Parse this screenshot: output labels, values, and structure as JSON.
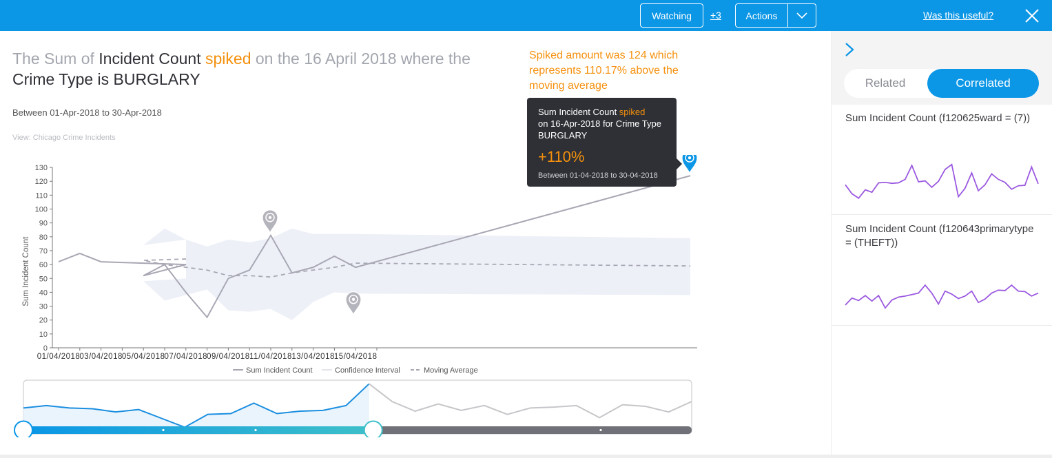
{
  "topbar": {
    "watching_label": "Watching",
    "plus_count": "+3",
    "actions_label": "Actions",
    "useful_label": "Was this useful?"
  },
  "headline": {
    "part1": "The Sum of ",
    "measure": "Incident Count",
    "space1": " ",
    "spiked": "spiked",
    "part2": " on the 16 April 2018 where the",
    "part3": "Crime Type is BURGLARY"
  },
  "between": "Between 01-Apr-2018 to 30-Apr-2018",
  "view_label": "View: Chicago Crime Incidents",
  "spike_note": "Spiked amount was 124 which represents 110.17% above the moving average",
  "tooltip": {
    "line1_a": "Sum Incident Count ",
    "line1_spiked": "spiked",
    "line2": "on 16-Apr-2018 for Crime Type BURGLARY",
    "pct": "+110%",
    "range": "Between 01-04-2018 to 30-04-2018"
  },
  "chart_data": {
    "type": "line",
    "ylabel": "Sum Incident Count",
    "ylim": [
      0,
      130
    ],
    "yticks": [
      0,
      10,
      20,
      30,
      40,
      50,
      60,
      70,
      80,
      90,
      100,
      110,
      120,
      130
    ],
    "x_tick_labels": [
      "01/04/2018",
      "03/04/2018",
      "05/04/2018",
      "07/04/2018",
      "09/04/2018",
      "11/04/2018",
      "13/04/2018",
      "15/04/2018"
    ],
    "x": [
      "01/04/2018",
      "02/04/2018",
      "03/04/2018",
      "04/04/2018",
      "05/04/2018",
      "06/04/2018",
      "07/04/2018",
      "08/04/2018",
      "09/04/2018",
      "10/04/2018",
      "11/04/2018",
      "12/04/2018",
      "13/04/2018",
      "14/04/2018",
      "15/04/2018",
      "16/04/2018"
    ],
    "series": [
      {
        "name": "Sum Incident Count",
        "color": "#a8a7b4",
        "values": [
          62,
          68,
          62,
          60,
          52,
          60,
          40,
          22,
          50,
          56,
          81,
          54,
          58,
          66,
          58,
          124
        ]
      },
      {
        "name": "Moving Average",
        "color": "#a8a7b4",
        "dashed": true,
        "values": [
          null,
          null,
          null,
          64,
          63,
          60,
          58,
          56,
          52,
          52,
          51,
          54,
          56,
          58,
          61,
          59
        ]
      },
      {
        "name": "Confidence Interval",
        "color": "#eef0f8",
        "upper": [
          null,
          null,
          null,
          78,
          74,
          86,
          78,
          73,
          78,
          76,
          79,
          86,
          82,
          82,
          82,
          79
        ],
        "lower": [
          null,
          null,
          null,
          50,
          48,
          34,
          38,
          42,
          27,
          26,
          28,
          20,
          33,
          40,
          39,
          38
        ]
      }
    ],
    "markers": [
      {
        "x": "08/04/2018",
        "value": 22,
        "kind": "dip"
      },
      {
        "x": "11/04/2018",
        "value": 81,
        "kind": "spike"
      },
      {
        "x": "16/04/2018",
        "value": 124,
        "kind": "selected-spike"
      }
    ],
    "legend": [
      "Sum Incident Count",
      "Confidence Interval",
      "Moving Average"
    ],
    "legend_position": "bottom",
    "grid": false
  },
  "navigator": {
    "values": [
      58,
      61,
      58,
      57,
      53,
      56,
      45,
      34,
      50,
      51,
      64,
      51,
      54,
      55,
      61,
      88,
      66,
      54,
      63,
      55,
      61,
      50,
      58,
      59,
      61,
      46,
      62,
      60,
      53,
      66
    ],
    "selected_count": 16
  },
  "sidepanel": {
    "tab_related": "Related",
    "tab_correlated": "Correlated",
    "cards": [
      {
        "title": "Sum Incident Count (f120625ward = (7))",
        "color": "#9b59e0",
        "values": [
          44,
          26,
          17,
          34,
          29,
          48,
          49,
          47,
          48,
          55,
          83,
          50,
          52,
          39,
          51,
          75,
          85,
          20,
          37,
          68,
          32,
          44,
          66,
          55,
          49,
          35,
          42,
          43,
          80,
          46
        ]
      },
      {
        "title": "Sum Incident Count (f120643primarytype = (THEFT))",
        "color": "#9b59e0",
        "values": [
          28,
          42,
          37,
          47,
          36,
          47,
          22,
          38,
          44,
          46,
          49,
          52,
          68,
          52,
          30,
          56,
          50,
          41,
          46,
          56,
          33,
          40,
          52,
          58,
          57,
          68,
          56,
          55,
          46,
          52
        ]
      }
    ]
  },
  "colors": {
    "accent": "#0b96e6",
    "orange": "#f5900d",
    "line_grey": "#a8a7b4",
    "purple": "#9b59e0"
  }
}
